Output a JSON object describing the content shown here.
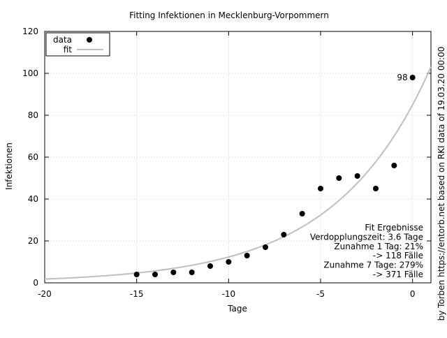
{
  "chart_data": {
    "type": "scatter",
    "title": "Fitting Infektionen in Mecklenburg-Vorpommern",
    "xlabel": "Tage",
    "ylabel": "Infektionen",
    "side_label": "by Torben https://entorb.net based on RKI data of 19.03.20 00:00",
    "xlim": [
      -20,
      1
    ],
    "ylim": [
      0,
      120
    ],
    "xticks": [
      -20,
      -15,
      -10,
      -5,
      0
    ],
    "yticks": [
      0,
      20,
      40,
      60,
      80,
      100,
      120
    ],
    "grid": true,
    "legend_position": "top-left",
    "legend": [
      {
        "name": "data",
        "marker": "dot"
      },
      {
        "name": "fit",
        "marker": "line"
      }
    ],
    "series": [
      {
        "name": "data",
        "x": [
          -15,
          -14,
          -13,
          -12,
          -11,
          -10,
          -9,
          -8,
          -7,
          -6,
          -5,
          -4,
          -3,
          -2,
          -1,
          0
        ],
        "y": [
          4,
          4,
          5,
          5,
          8,
          10,
          13,
          17,
          23,
          33,
          45,
          50,
          51,
          45,
          56,
          98
        ]
      },
      {
        "name": "fit",
        "model": "exponential",
        "a": 85,
        "b": 0.193,
        "color": "#bebebe"
      }
    ],
    "point_label": {
      "x": 0,
      "y": 98,
      "text": "98"
    },
    "annotation_lines": [
      "Fit Ergebnisse",
      "Verdopplungszeit: 3.6 Tage",
      "Zunahme 1 Tag: 21%",
      "-> 118 Fälle",
      "Zunahme 7 Tage: 279%",
      "-> 371 Fälle"
    ]
  }
}
